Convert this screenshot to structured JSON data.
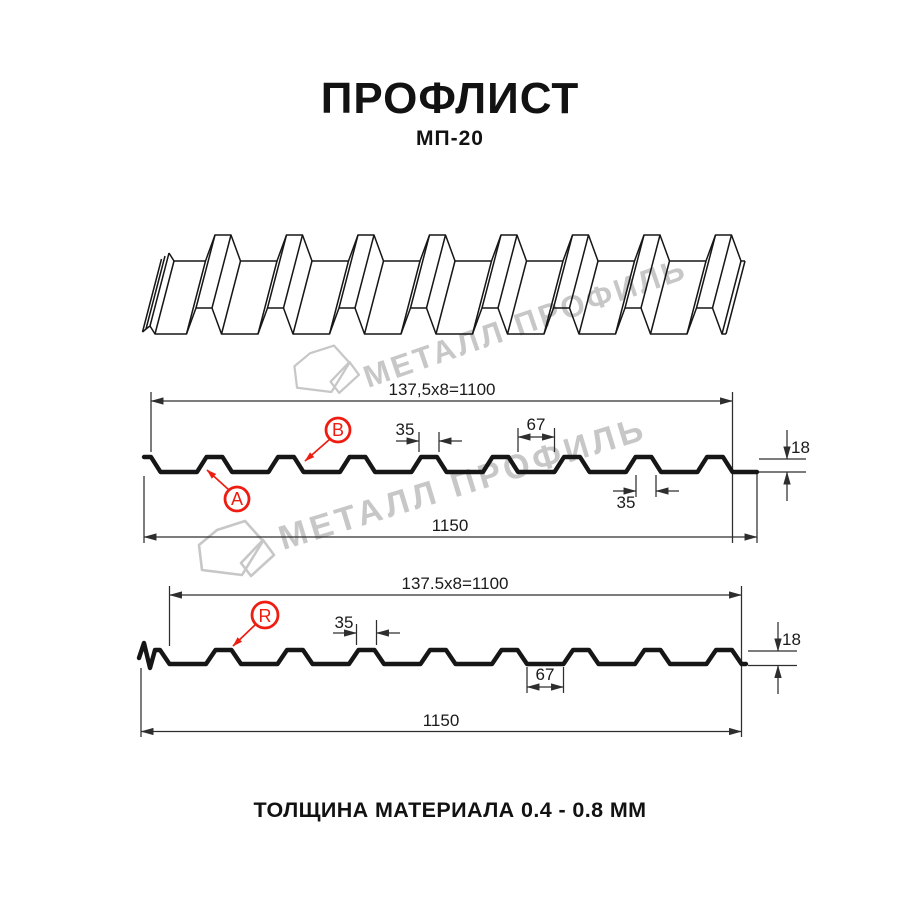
{
  "header": {
    "title": "ПРОФЛИСТ",
    "subtitle": "МП-20"
  },
  "watermark": {
    "text": "МЕТАЛЛ ПРОФИЛЬ"
  },
  "sections": {
    "top": {
      "module_width": "137,5x8=1100",
      "overall_width": "1150",
      "crest_top_width": "35",
      "trough_width": "67",
      "crest_base_width": "35",
      "height": "18",
      "side_a": "A",
      "side_b": "B"
    },
    "bottom": {
      "module_width": "137.5x8=1100",
      "overall_width": "1150",
      "crest_top_width": "35",
      "trough_width": "67",
      "height": "18",
      "side_r": "R"
    }
  },
  "footer": {
    "note": "ТОЛЩИНА МАТЕРИАЛА 0.4 - 0.8 ММ"
  },
  "colors": {
    "ink": "#161616",
    "dim": "#2e2e2e",
    "red": "#ee1c11",
    "watermark": "#c7c7c7"
  }
}
